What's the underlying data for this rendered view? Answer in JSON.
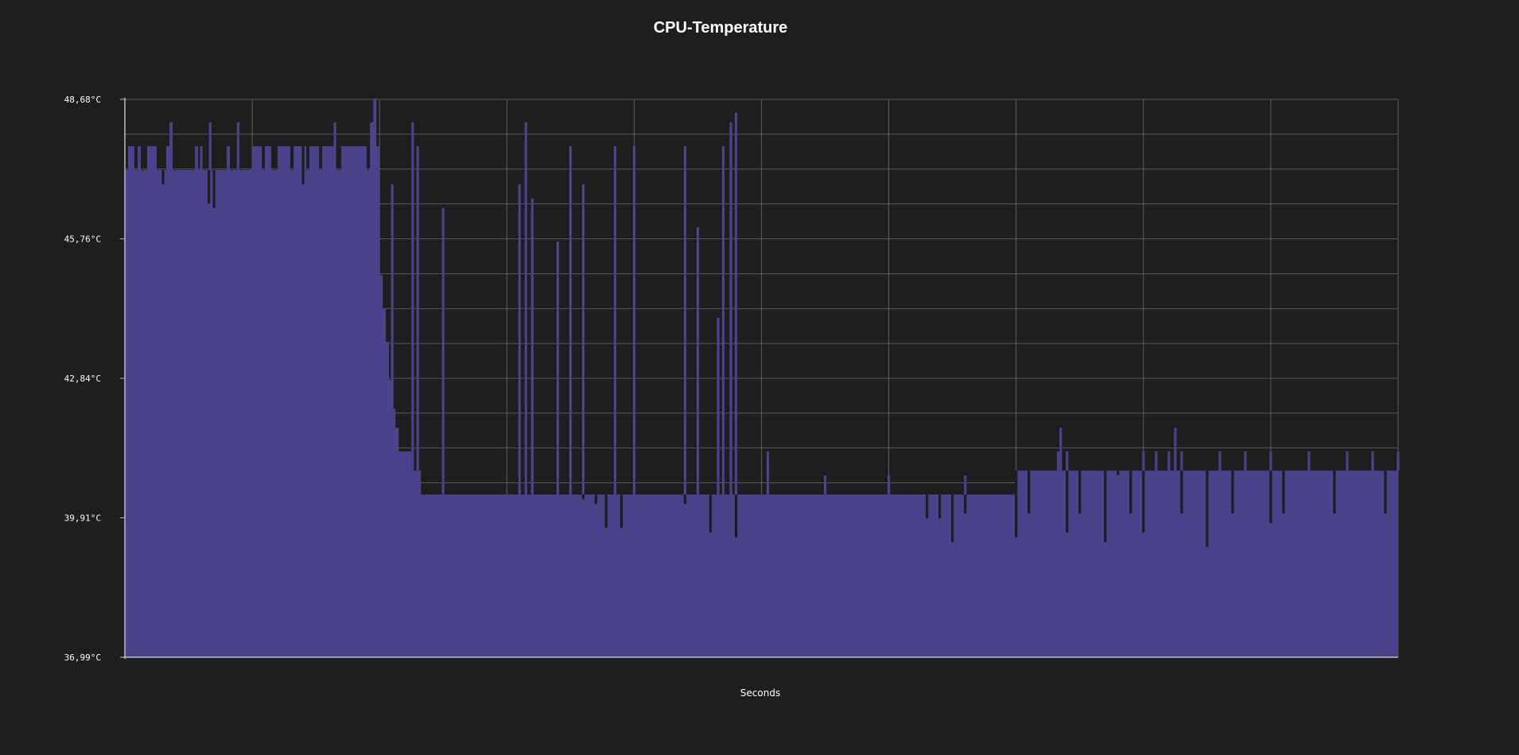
{
  "chart_data": {
    "type": "area",
    "title": "CPU-Temperature",
    "xlabel": "Seconds",
    "ylabel": "",
    "ylim": [
      36.99,
      48.68
    ],
    "y_tick_labels": [
      "48,68°C",
      "45,76°C",
      "42,84°C",
      "39,91°C",
      "36,99°C"
    ],
    "grid": true,
    "x_grid_lines": 10,
    "y_grid_lines": 16,
    "colors": {
      "fill": "#4a428a",
      "background": "#1e1e1e",
      "grid": "#6b6b6b",
      "axis": "#bbbbbb"
    },
    "series": [
      {
        "values": [
          47.2,
          47.7,
          47.7,
          47.2,
          47.7,
          47.2,
          47.2,
          47.7,
          47.7,
          47.7,
          47.2,
          47.2,
          47.2,
          47.7,
          48.2,
          47.2,
          47.2,
          47.2,
          47.2,
          47.2,
          47.2,
          47.2,
          47.7,
          47.2,
          47.2,
          47.2,
          47.2,
          47.2,
          47.2,
          47.2,
          47.2,
          47.2,
          47.7,
          47.2,
          47.2,
          47.2,
          47.2,
          47.2,
          47.2,
          47.2,
          47.7,
          47.7,
          47.7,
          47.2,
          47.7,
          47.7,
          47.2,
          47.2,
          47.7,
          47.7,
          47.7,
          47.7,
          47.2,
          47.7,
          47.7,
          47.7,
          47.7,
          47.2,
          47.7,
          47.7,
          47.7,
          47.2,
          47.7,
          47.7,
          47.7,
          47.7,
          47.2,
          47.2,
          47.7,
          47.7,
          47.7,
          47.7,
          47.7,
          47.7,
          47.7,
          47.7,
          47.2,
          48.2,
          48.7,
          47.7,
          45.0,
          44.3,
          43.6,
          42.8,
          42.2,
          41.8,
          41.3,
          41.3,
          41.3,
          41.3,
          40.9,
          40.9,
          40.9,
          40.4,
          40.4,
          40.4,
          40.4,
          40.4,
          40.4,
          40.4,
          40.4,
          40.4,
          40.4,
          40.4,
          40.4,
          40.4,
          40.4,
          40.4,
          40.4,
          40.4,
          40.4,
          40.4,
          40.4,
          40.4,
          40.4,
          40.4,
          40.4,
          40.4,
          40.4,
          40.4,
          40.4,
          40.4,
          40.4,
          40.4,
          40.4,
          40.4,
          40.4,
          40.4,
          40.4,
          40.4,
          40.4,
          40.4,
          40.4,
          40.4,
          40.4,
          40.4,
          40.4,
          40.4,
          40.4,
          40.4,
          40.4,
          40.4,
          40.4,
          40.4,
          40.4,
          40.4,
          40.4,
          40.4,
          40.4,
          40.4,
          40.4,
          40.4,
          40.4,
          40.4,
          40.4,
          40.4,
          40.4,
          40.4,
          40.4,
          40.4,
          40.4,
          40.4,
          40.4,
          40.4,
          40.4,
          40.4,
          40.4,
          40.4,
          40.4,
          40.4,
          40.4,
          40.4,
          40.4,
          40.4,
          40.4,
          40.4,
          40.4,
          40.4,
          40.4,
          40.4,
          40.4,
          40.4,
          40.4,
          40.4,
          40.4,
          40.4,
          40.4,
          40.4,
          40.4,
          40.4,
          40.4,
          40.4,
          40.4,
          40.4,
          40.4,
          40.4,
          40.4,
          40.4,
          40.4,
          40.4,
          40.4,
          40.4,
          40.4,
          40.4,
          40.4,
          40.4,
          40.4,
          40.4,
          40.4,
          40.4,
          40.4,
          40.4,
          40.4,
          40.4,
          40.4,
          40.4,
          40.4,
          40.4,
          40.4,
          40.4,
          40.4,
          40.4,
          40.4,
          40.4,
          40.4,
          40.4,
          40.4,
          40.4,
          40.4,
          40.4,
          40.4,
          40.4,
          40.4,
          40.4,
          40.4,
          40.4,
          40.4,
          40.4,
          40.4,
          40.4,
          40.4,
          40.4,
          40.4,
          40.4,
          40.4,
          40.4,
          40.4,
          40.4,
          40.4,
          40.4,
          40.4,
          40.4,
          40.4,
          40.4,
          40.4,
          40.4,
          40.4,
          40.4,
          40.4,
          40.4,
          40.4,
          40.4,
          40.4,
          40.4,
          40.4,
          40.4,
          40.4,
          40.4,
          40.4,
          40.4,
          40.4,
          40.4,
          40.4,
          40.4,
          40.4,
          40.4,
          40.4,
          40.4,
          40.4,
          40.4,
          40.9,
          40.9,
          40.9,
          40.9,
          40.9,
          40.9,
          40.9,
          40.9,
          40.9,
          40.9,
          40.9,
          40.9,
          40.9,
          40.9,
          40.9,
          40.9,
          40.9,
          40.9,
          40.9,
          40.9,
          40.9,
          40.9,
          40.9,
          40.9,
          40.9,
          40.9,
          40.9,
          40.9,
          40.9,
          40.9,
          40.9,
          40.9,
          40.9,
          40.9,
          40.9,
          40.9,
          40.9,
          40.9,
          40.9,
          40.9,
          40.9,
          40.9,
          40.9,
          40.9,
          40.9,
          40.9,
          40.9,
          40.9,
          40.9,
          40.9,
          40.9,
          40.9,
          40.9,
          40.9,
          40.9,
          40.9,
          40.9,
          40.9,
          40.9,
          40.9,
          40.9,
          40.9,
          40.9,
          40.9,
          40.9,
          40.9,
          40.9,
          40.9,
          40.9,
          40.9,
          40.9,
          40.9,
          40.9,
          40.9,
          40.9,
          40.9,
          40.9,
          40.9,
          40.9,
          40.9,
          40.9,
          40.9,
          40.9,
          40.9,
          40.9,
          40.9,
          40.9,
          40.9,
          40.9,
          40.9,
          40.9,
          40.9,
          40.9,
          40.9,
          40.9,
          40.9,
          40.9,
          40.9,
          40.9,
          40.9,
          40.9,
          40.9,
          40.9,
          40.9,
          40.9,
          40.9,
          40.9,
          40.9,
          40.9,
          40.9,
          40.9,
          40.9,
          40.9,
          40.9,
          40.9,
          40.9,
          40.9,
          40.9,
          40.9,
          40.9
        ]
      }
    ],
    "spikes": [
      [
        0.02,
        47.7
      ],
      [
        0.03,
        46.9
      ],
      [
        0.06,
        47.7
      ],
      [
        0.067,
        48.2
      ],
      [
        0.066,
        46.5
      ],
      [
        0.07,
        46.4
      ],
      [
        0.089,
        48.2
      ],
      [
        0.1,
        47.7
      ],
      [
        0.14,
        46.9
      ],
      [
        0.165,
        48.2
      ],
      [
        0.17,
        47.7
      ],
      [
        0.21,
        46.9
      ],
      [
        0.226,
        48.2
      ],
      [
        0.23,
        47.7
      ],
      [
        0.25,
        46.4
      ],
      [
        0.31,
        46.9
      ],
      [
        0.315,
        48.2
      ],
      [
        0.32,
        46.6
      ],
      [
        0.35,
        47.7
      ],
      [
        0.36,
        46.9
      ],
      [
        0.385,
        47.7
      ],
      [
        0.4,
        47.7
      ],
      [
        0.44,
        47.7
      ],
      [
        0.47,
        47.7
      ],
      [
        0.476,
        48.2
      ],
      [
        0.48,
        48.4
      ],
      [
        0.32,
        45.8
      ],
      [
        0.34,
        45.7
      ],
      [
        0.45,
        46.0
      ],
      [
        0.466,
        44.1
      ],
      [
        0.36,
        40.3
      ],
      [
        0.37,
        40.2
      ],
      [
        0.378,
        39.7
      ],
      [
        0.39,
        39.7
      ],
      [
        0.44,
        40.2
      ],
      [
        0.46,
        39.6
      ],
      [
        0.48,
        39.5
      ],
      [
        0.63,
        39.9
      ],
      [
        0.65,
        39.4
      ],
      [
        0.7,
        39.5
      ],
      [
        0.74,
        39.6
      ],
      [
        0.77,
        39.4
      ],
      [
        0.8,
        39.6
      ],
      [
        0.85,
        39.3
      ],
      [
        0.9,
        39.8
      ],
      [
        0.44,
        40.6
      ],
      [
        0.48,
        41.3
      ],
      [
        0.505,
        41.3
      ],
      [
        0.55,
        40.8
      ],
      [
        0.6,
        40.8
      ],
      [
        0.66,
        40.8
      ],
      [
        0.7,
        40.8
      ],
      [
        0.733,
        41.3
      ],
      [
        0.735,
        41.8
      ],
      [
        0.74,
        41.3
      ],
      [
        0.78,
        40.8
      ],
      [
        0.8,
        41.3
      ],
      [
        0.81,
        41.3
      ],
      [
        0.82,
        41.3
      ],
      [
        0.825,
        41.8
      ],
      [
        0.83,
        41.3
      ],
      [
        0.86,
        41.3
      ],
      [
        0.88,
        41.3
      ],
      [
        0.9,
        41.3
      ],
      [
        0.93,
        41.3
      ],
      [
        0.96,
        41.3
      ],
      [
        0.98,
        41.3
      ],
      [
        1.0,
        41.3
      ],
      [
        0.64,
        39.9
      ],
      [
        0.66,
        40.0
      ],
      [
        0.71,
        40.0
      ],
      [
        0.75,
        40.0
      ],
      [
        0.79,
        40.0
      ],
      [
        0.83,
        40.0
      ],
      [
        0.87,
        40.0
      ],
      [
        0.91,
        40.0
      ],
      [
        0.95,
        40.0
      ],
      [
        0.99,
        40.0
      ]
    ]
  }
}
